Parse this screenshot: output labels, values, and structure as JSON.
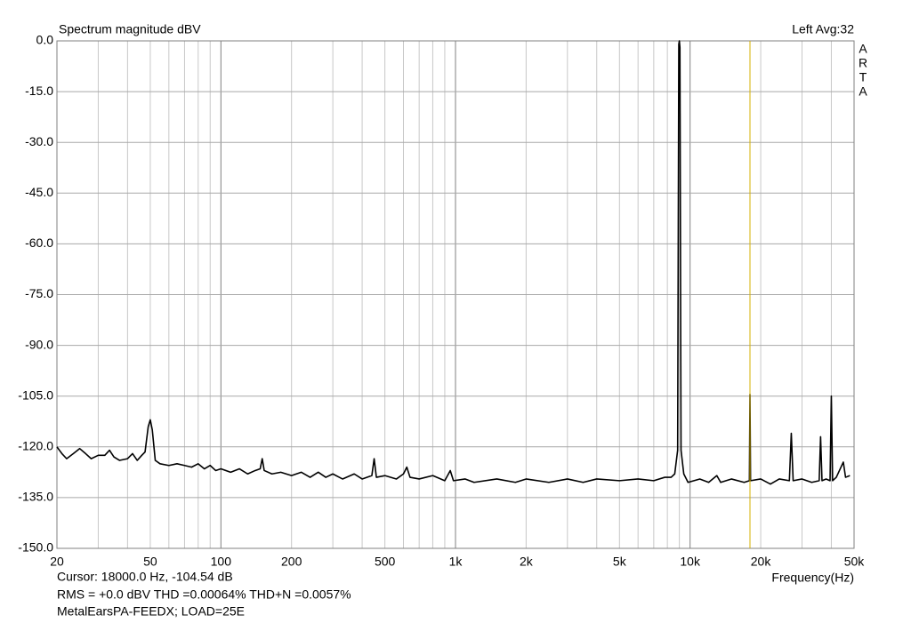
{
  "chart_data": {
    "type": "line",
    "title": "Spectrum magnitude dBV",
    "channel_info": "Left  Avg:32",
    "logo": [
      "A",
      "R",
      "T",
      "A"
    ],
    "x_label": "Frequency(Hz)",
    "log_x": true,
    "grid": true,
    "xlim": [
      20,
      50000
    ],
    "ylim": [
      -150,
      0
    ],
    "xticks": [
      20,
      50,
      100,
      200,
      500,
      {
        "value": 1000,
        "label": "1k"
      },
      {
        "value": 2000,
        "label": "2k"
      },
      {
        "value": 5000,
        "label": "5k"
      },
      {
        "value": 10000,
        "label": "10k"
      },
      {
        "value": 20000,
        "label": "20k"
      },
      {
        "value": 50000,
        "label": "50k"
      }
    ],
    "xminor_ticks": [
      30,
      40,
      60,
      70,
      80,
      90,
      300,
      400,
      600,
      700,
      800,
      900,
      3000,
      4000,
      6000,
      7000,
      8000,
      9000,
      30000,
      40000
    ],
    "yticks": [
      {
        "value": 0,
        "label": "0.0"
      },
      {
        "value": -15,
        "label": "-15.0"
      },
      {
        "value": -30,
        "label": "-30.0"
      },
      {
        "value": -45,
        "label": "-45.0"
      },
      {
        "value": -60,
        "label": "-60.0"
      },
      {
        "value": -75,
        "label": "-75.0"
      },
      {
        "value": -90,
        "label": "-90.0"
      },
      {
        "value": -105,
        "label": "-105.0"
      },
      {
        "value": -120,
        "label": "-120.0"
      },
      {
        "value": -135,
        "label": "-135.0"
      },
      {
        "value": -150,
        "label": "-150.0"
      }
    ],
    "cursor": {
      "x": 18000,
      "color": "#d4b000",
      "label": "Cursor: 18000.0 Hz, -104.54 dB"
    },
    "measurements": "RMS =   +0.0 dBV   THD =0.00064%   THD+N =0.0057%",
    "measurements_color": "#d00000",
    "description": "MetalEarsPA-FEEDX; LOAD=25E",
    "x": [
      20,
      21,
      22,
      23.5,
      25,
      26.5,
      28,
      30,
      32,
      33.5,
      35,
      37,
      40,
      42,
      44,
      46,
      47.5,
      49,
      50,
      51,
      52.5,
      55,
      60,
      65,
      70,
      75,
      80,
      85,
      90,
      95,
      100,
      110,
      120,
      130,
      140,
      147,
      150,
      153,
      165,
      180,
      200,
      220,
      240,
      260,
      280,
      300,
      330,
      370,
      400,
      440,
      450,
      460,
      500,
      560,
      600,
      620,
      640,
      700,
      800,
      900,
      950,
      980,
      1100,
      1200,
      1500,
      1800,
      2000,
      2500,
      3000,
      3500,
      4000,
      5000,
      6000,
      7000,
      7800,
      8300,
      8600,
      8850,
      8950,
      9000,
      9050,
      9150,
      9400,
      9800,
      11000,
      12000,
      13000,
      13500,
      15000,
      17000,
      17900,
      18000,
      18100,
      20000,
      22000,
      24000,
      26500,
      27000,
      27500,
      30000,
      33000,
      35500,
      36000,
      36500,
      38000,
      39500,
      40000,
      40500,
      42000,
      45000,
      46000,
      48000
    ],
    "series": [
      {
        "name": "Left",
        "color": "#000000",
        "values": [
          -120,
          -122,
          -123.5,
          -122,
          -120.5,
          -122,
          -123.5,
          -122.5,
          -122.5,
          -121,
          -123,
          -124,
          -123.5,
          -122,
          -124,
          -122.5,
          -121.5,
          -114,
          -112,
          -115,
          -124,
          -125,
          -125.5,
          -125,
          -125.5,
          -126,
          -125,
          -126.5,
          -125.5,
          -127,
          -126.5,
          -127.5,
          -126.5,
          -128,
          -127,
          -126.5,
          -123.5,
          -127,
          -128,
          -127.5,
          -128.5,
          -127.5,
          -129,
          -127.5,
          -129,
          -128,
          -129.5,
          -128,
          -129.5,
          -128.5,
          -123.5,
          -129,
          -128.5,
          -129.5,
          -128,
          -126,
          -129,
          -129.5,
          -128.5,
          -130,
          -127,
          -130,
          -129.5,
          -130.5,
          -129.5,
          -130.5,
          -129.5,
          -130.5,
          -129.5,
          -130.5,
          -129.5,
          -130,
          -129.5,
          -130,
          -129,
          -129,
          -128,
          -121,
          -1,
          0,
          -2,
          -121,
          -128,
          -130.5,
          -129.5,
          -130.5,
          -128.5,
          -130.5,
          -129.5,
          -130.5,
          -130,
          -104.5,
          -130,
          -129.5,
          -131,
          -129.5,
          -130,
          -116,
          -130,
          -129.5,
          -130.5,
          -130,
          -117,
          -130,
          -129.5,
          -130,
          -105,
          -130,
          -129,
          -124.5,
          -129,
          -128.5
        ]
      }
    ]
  }
}
